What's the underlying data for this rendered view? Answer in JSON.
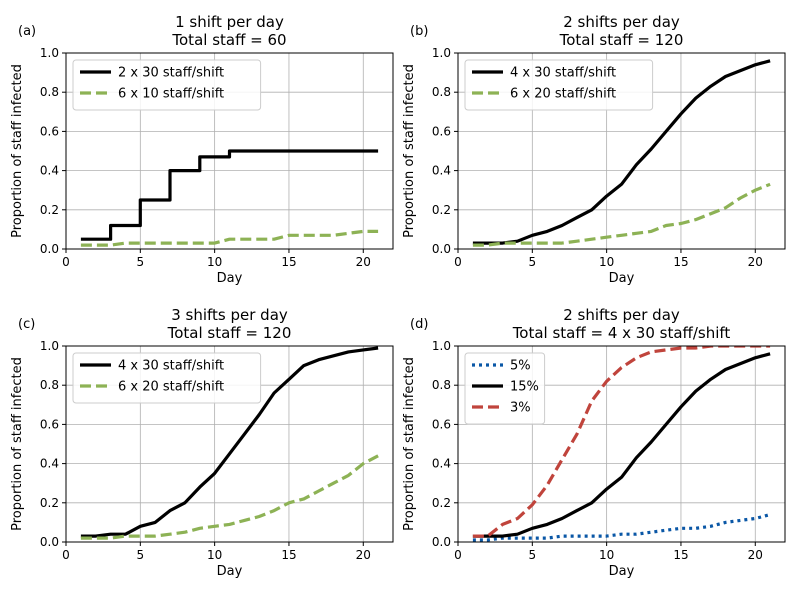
{
  "chart_data": [
    {
      "panel_label": "(a)",
      "type": "line",
      "title": [
        "1 shift per day",
        "Total staff = 60"
      ],
      "xlabel": "Day",
      "ylabel": "Proportion of staff infected",
      "xlim": [
        0,
        22
      ],
      "ylim": [
        0,
        1
      ],
      "xticks": [
        0,
        5,
        10,
        15,
        20
      ],
      "yticks": [
        0.0,
        0.2,
        0.4,
        0.6,
        0.8,
        1.0
      ],
      "grid": true,
      "legend": "top-left",
      "x": [
        1,
        2,
        3,
        4,
        5,
        6,
        7,
        8,
        9,
        10,
        11,
        12,
        13,
        14,
        15,
        16,
        17,
        18,
        19,
        20,
        21
      ],
      "series": [
        {
          "name": "2 x 30 staff/shift",
          "color": "#000000",
          "dash": "solid",
          "step": true,
          "values": [
            0.05,
            0.05,
            0.12,
            0.12,
            0.25,
            0.25,
            0.4,
            0.4,
            0.47,
            0.47,
            0.5,
            0.5,
            0.5,
            0.5,
            0.5,
            0.5,
            0.5,
            0.5,
            0.5,
            0.5,
            0.5
          ]
        },
        {
          "name": "6 x 10 staff/shift",
          "color": "#8db255",
          "dash": "dashed",
          "step": false,
          "values": [
            0.02,
            0.02,
            0.02,
            0.03,
            0.03,
            0.03,
            0.03,
            0.03,
            0.03,
            0.03,
            0.05,
            0.05,
            0.05,
            0.05,
            0.07,
            0.07,
            0.07,
            0.07,
            0.08,
            0.09,
            0.09
          ]
        }
      ]
    },
    {
      "panel_label": "(b)",
      "type": "line",
      "title": [
        "2 shifts per day",
        "Total staff = 120"
      ],
      "xlabel": "Day",
      "ylabel": "Proportion of staff infected",
      "xlim": [
        0,
        22
      ],
      "ylim": [
        0,
        1
      ],
      "xticks": [
        0,
        5,
        10,
        15,
        20
      ],
      "yticks": [
        0.0,
        0.2,
        0.4,
        0.6,
        0.8,
        1.0
      ],
      "grid": true,
      "legend": "top-left",
      "x": [
        1,
        2,
        3,
        4,
        5,
        6,
        7,
        8,
        9,
        10,
        11,
        12,
        13,
        14,
        15,
        16,
        17,
        18,
        19,
        20,
        21
      ],
      "series": [
        {
          "name": "4 x 30 staff/shift",
          "color": "#000000",
          "dash": "solid",
          "step": false,
          "values": [
            0.03,
            0.03,
            0.03,
            0.04,
            0.07,
            0.09,
            0.12,
            0.16,
            0.2,
            0.27,
            0.33,
            0.43,
            0.51,
            0.6,
            0.69,
            0.77,
            0.83,
            0.88,
            0.91,
            0.94,
            0.96
          ]
        },
        {
          "name": "6 x 20 staff/shift",
          "color": "#8db255",
          "dash": "dashed",
          "step": false,
          "values": [
            0.02,
            0.02,
            0.03,
            0.03,
            0.03,
            0.03,
            0.03,
            0.04,
            0.05,
            0.06,
            0.07,
            0.08,
            0.09,
            0.12,
            0.13,
            0.15,
            0.18,
            0.21,
            0.26,
            0.3,
            0.33
          ]
        }
      ]
    },
    {
      "panel_label": "(c)",
      "type": "line",
      "title": [
        "3 shifts per day",
        "Total staff = 120"
      ],
      "xlabel": "Day",
      "ylabel": "Proportion of staff infected",
      "xlim": [
        0,
        22
      ],
      "ylim": [
        0,
        1
      ],
      "xticks": [
        0,
        5,
        10,
        15,
        20
      ],
      "yticks": [
        0.0,
        0.2,
        0.4,
        0.6,
        0.8,
        1.0
      ],
      "grid": true,
      "legend": "top-left",
      "x": [
        1,
        2,
        3,
        4,
        5,
        6,
        7,
        8,
        9,
        10,
        11,
        12,
        13,
        14,
        15,
        16,
        17,
        18,
        19,
        20,
        21
      ],
      "series": [
        {
          "name": "4 x 30 staff/shift",
          "color": "#000000",
          "dash": "solid",
          "step": false,
          "values": [
            0.03,
            0.03,
            0.04,
            0.04,
            0.08,
            0.1,
            0.16,
            0.2,
            0.28,
            0.35,
            0.45,
            0.55,
            0.65,
            0.76,
            0.83,
            0.9,
            0.93,
            0.95,
            0.97,
            0.98,
            0.99
          ]
        },
        {
          "name": "6 x 20 staff/shift",
          "color": "#8db255",
          "dash": "dashed",
          "step": false,
          "values": [
            0.02,
            0.02,
            0.02,
            0.03,
            0.03,
            0.03,
            0.04,
            0.05,
            0.07,
            0.08,
            0.09,
            0.11,
            0.13,
            0.16,
            0.2,
            0.22,
            0.26,
            0.3,
            0.34,
            0.4,
            0.44
          ]
        }
      ]
    },
    {
      "panel_label": "(d)",
      "type": "line",
      "title": [
        "2 shifts per day",
        "Total staff = 4 x 30 staff/shift"
      ],
      "xlabel": "Day",
      "ylabel": "Proportion of staff infected",
      "xlim": [
        0,
        22
      ],
      "ylim": [
        0,
        1
      ],
      "xticks": [
        0,
        5,
        10,
        15,
        20
      ],
      "yticks": [
        0.0,
        0.2,
        0.4,
        0.6,
        0.8,
        1.0
      ],
      "grid": true,
      "legend": "top-left",
      "x": [
        1,
        2,
        3,
        4,
        5,
        6,
        7,
        8,
        9,
        10,
        11,
        12,
        13,
        14,
        15,
        16,
        17,
        18,
        19,
        20,
        21
      ],
      "series": [
        {
          "name": "5%",
          "color": "#0a57a6",
          "dash": "dotted",
          "step": false,
          "values": [
            0.01,
            0.01,
            0.02,
            0.02,
            0.02,
            0.02,
            0.03,
            0.03,
            0.03,
            0.03,
            0.04,
            0.04,
            0.05,
            0.06,
            0.07,
            0.07,
            0.08,
            0.1,
            0.11,
            0.12,
            0.14
          ]
        },
        {
          "name": "15%",
          "color": "#000000",
          "dash": "solid",
          "step": false,
          "values": [
            0.03,
            0.03,
            0.03,
            0.04,
            0.07,
            0.09,
            0.12,
            0.16,
            0.2,
            0.27,
            0.33,
            0.43,
            0.51,
            0.6,
            0.69,
            0.77,
            0.83,
            0.88,
            0.91,
            0.94,
            0.96
          ]
        },
        {
          "name": "3%",
          "color": "#c0443c",
          "dash": "dashed",
          "step": false,
          "values": [
            0.03,
            0.03,
            0.09,
            0.12,
            0.19,
            0.29,
            0.42,
            0.55,
            0.72,
            0.82,
            0.89,
            0.94,
            0.97,
            0.98,
            0.99,
            0.99,
            1.0,
            1.0,
            1.0,
            1.0,
            1.0
          ]
        }
      ]
    }
  ]
}
